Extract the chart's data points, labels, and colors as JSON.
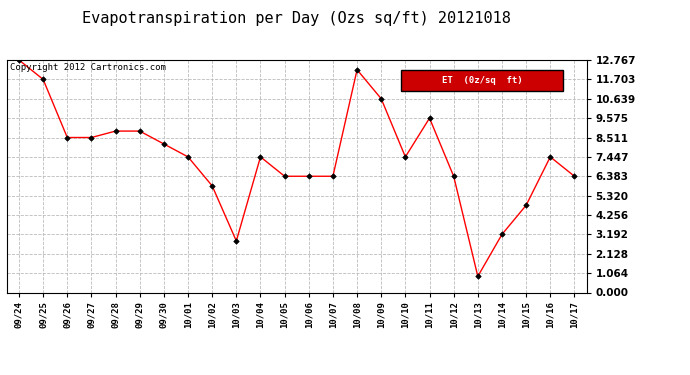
{
  "title": "Evapotranspiration per Day (Ozs sq/ft) 20121018",
  "copyright": "Copyright 2012 Cartronics.com",
  "legend_label": "ET  (0z/sq  ft)",
  "x_labels": [
    "09/24",
    "09/25",
    "09/26",
    "09/27",
    "09/28",
    "09/29",
    "09/30",
    "10/01",
    "10/02",
    "10/03",
    "10/04",
    "10/05",
    "10/06",
    "10/07",
    "10/08",
    "10/09",
    "10/10",
    "10/11",
    "10/12",
    "10/13",
    "10/14",
    "10/15",
    "10/16",
    "10/17"
  ],
  "y_values": [
    12.767,
    11.703,
    8.511,
    8.511,
    8.864,
    8.864,
    8.156,
    7.447,
    5.855,
    2.83,
    7.447,
    6.383,
    6.383,
    6.383,
    12.234,
    10.639,
    7.447,
    9.575,
    6.383,
    0.887,
    3.192,
    4.788,
    7.447,
    6.383
  ],
  "y_ticks": [
    0.0,
    1.064,
    2.128,
    3.192,
    4.256,
    5.32,
    6.383,
    7.447,
    8.511,
    9.575,
    10.639,
    11.703,
    12.767
  ],
  "y_tick_labels": [
    "0.000",
    "1.064",
    "2.128",
    "3.192",
    "4.256",
    "5.320",
    "6.383",
    "7.447",
    "8.511",
    "9.575",
    "10.639",
    "11.703",
    "12.767"
  ],
  "ylim": [
    0.0,
    12.767
  ],
  "line_color": "#ff0000",
  "marker_color": "#000000",
  "background_color": "#ffffff",
  "grid_color": "#bbbbbb",
  "title_fontsize": 11,
  "copyright_fontsize": 6.5,
  "legend_bg": "#cc0000",
  "legend_text_color": "#ffffff"
}
